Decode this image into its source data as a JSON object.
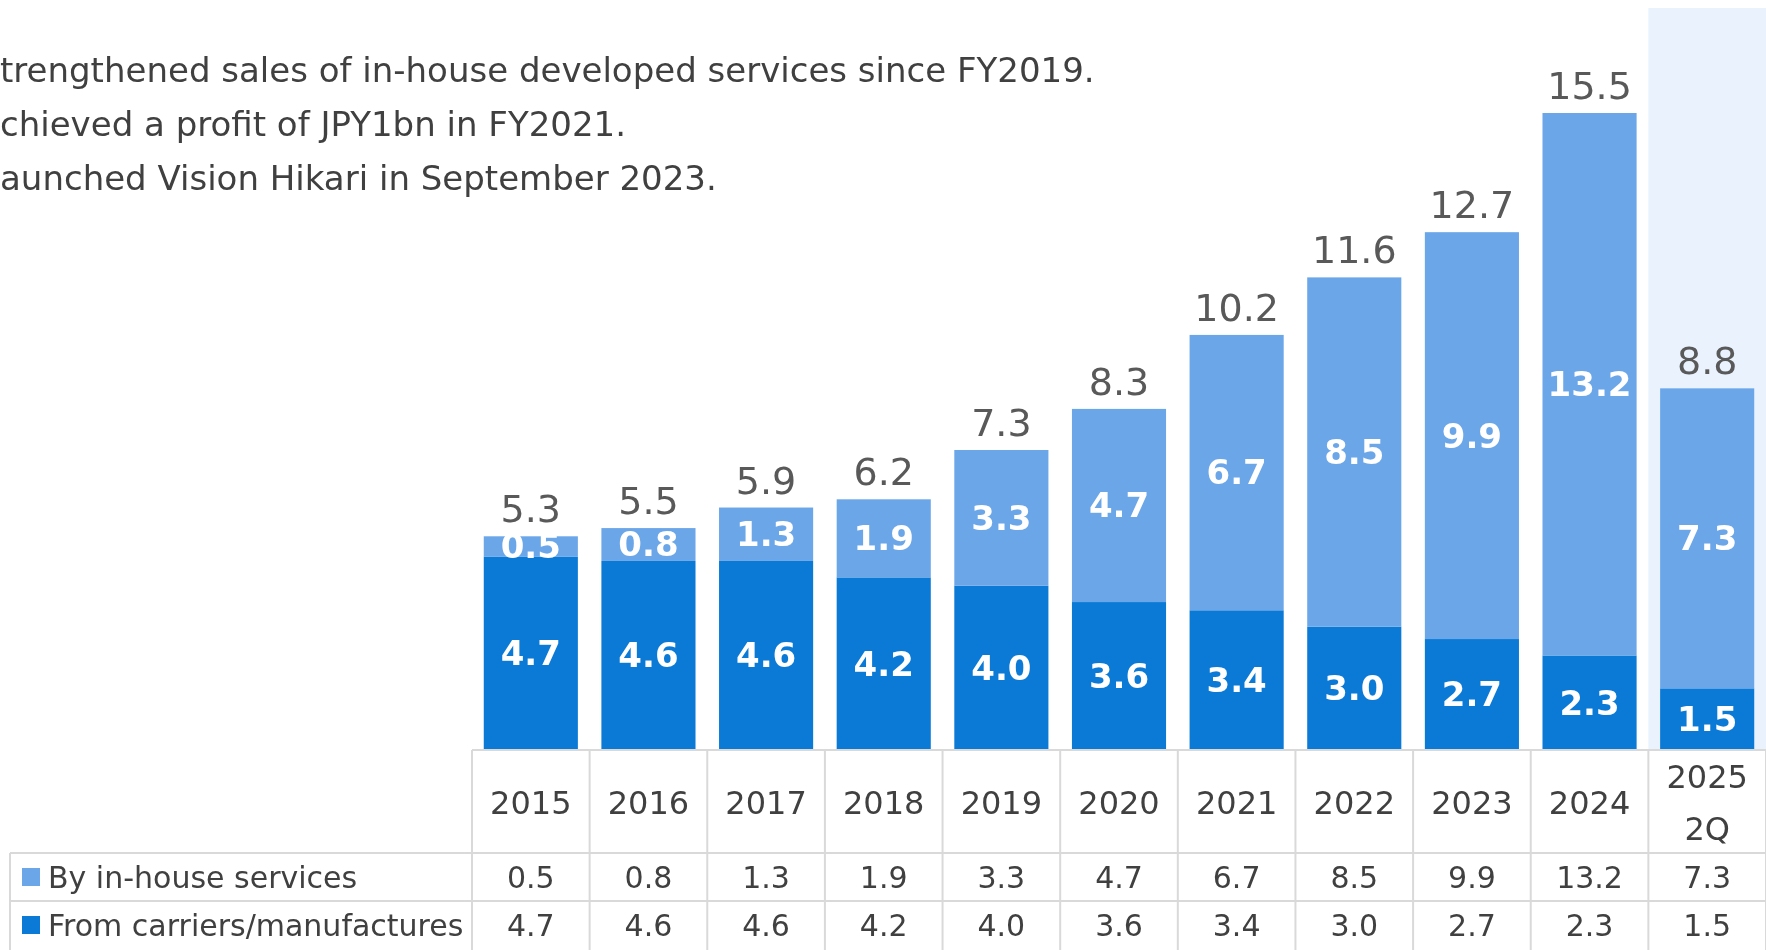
{
  "chart_data": {
    "type": "bar",
    "stacked": true,
    "legend": "bottom left",
    "categories": [
      "2015",
      "2016",
      "2017",
      "2018",
      "2019",
      "2020",
      "2021",
      "2022",
      "2023",
      "2024",
      "2025\n2Q"
    ],
    "series": [
      {
        "name": "From carriers/manufactures",
        "color": "#0a7ad6",
        "values": [
          4.7,
          4.6,
          4.6,
          4.2,
          4.0,
          3.6,
          3.4,
          3.0,
          2.7,
          2.3,
          1.5
        ],
        "value_labels": [
          "4.7",
          "4.6",
          "4.6",
          "4.2",
          "4.0",
          "3.6",
          "3.4",
          "3.0",
          "2.7",
          "2.3",
          "1.5"
        ]
      },
      {
        "name": "By in-house services",
        "color": "#6aa6e8",
        "values": [
          0.5,
          0.8,
          1.3,
          1.9,
          3.3,
          4.7,
          6.7,
          8.5,
          9.9,
          13.2,
          7.3
        ],
        "value_labels": [
          "0.5",
          "0.8",
          "1.3",
          "1.9",
          "3.3",
          "4.7",
          "6.7",
          "8.5",
          "9.9",
          "13.2",
          "7.3"
        ]
      }
    ],
    "totals": [
      "5.3",
      "5.5",
      "5.9",
      "6.2",
      "7.3",
      "8.3",
      "10.2",
      "11.6",
      "12.7",
      "15.5",
      "8.8"
    ],
    "bands": [
      {
        "axis": "x",
        "from": "2025\n2Q",
        "to": "2025\n2Q",
        "color": "#eaf3fd"
      }
    ],
    "annotations": [
      "trengthened sales of in-house developed services since FY2019.",
      "chieved a profit of JPY1bn in FY2021.",
      "aunched Vision Hikari in September 2023."
    ]
  }
}
